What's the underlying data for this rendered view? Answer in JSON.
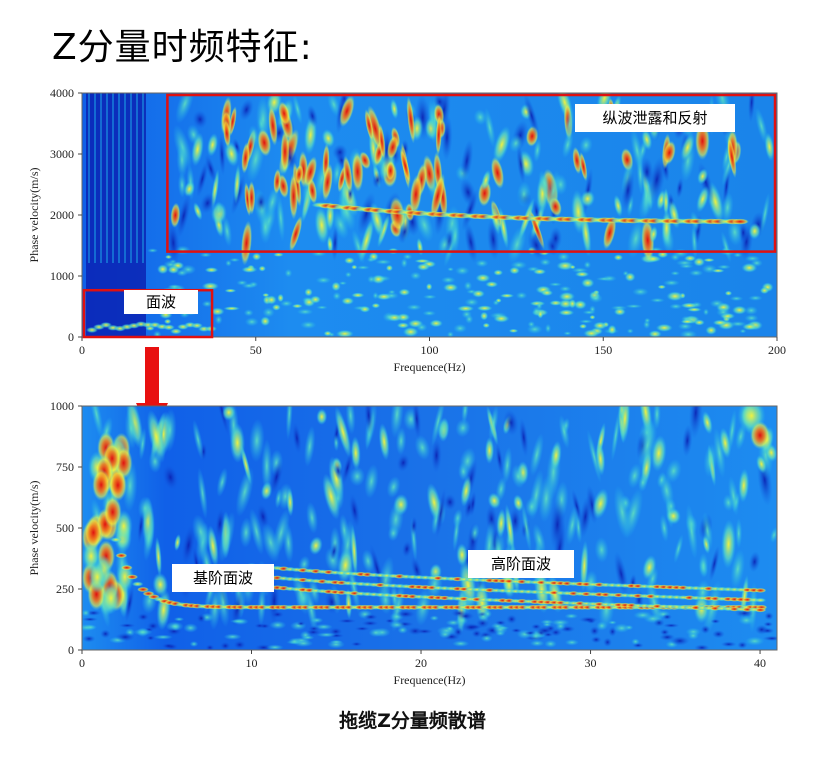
{
  "title": "Z分量时频特征:",
  "caption": "拖缆Z分量频散谱",
  "colors": {
    "highlight_box": "#e01010",
    "arrow": "#e81010",
    "colormap": [
      "#0a1fb0",
      "#1060e8",
      "#20b8f0",
      "#60e0c0",
      "#f0f040",
      "#f08020",
      "#e01010"
    ]
  },
  "chart_data": [
    {
      "type": "heatmap",
      "xlabel": "Frequence(Hz)",
      "ylabel": "Phase velocity(m/s)",
      "xlim": [
        0,
        200
      ],
      "ylim": [
        0,
        4000
      ],
      "xticks": [
        0,
        50,
        100,
        150,
        200
      ],
      "yticks": [
        0,
        1000,
        2000,
        3000,
        4000
      ],
      "annotations": [
        {
          "label": "纵波泄露和反射",
          "region": {
            "x": [
              24,
              200
            ],
            "y": [
              1400,
              4000
            ]
          }
        },
        {
          "label": "面波",
          "region": {
            "x": [
              0,
              38
            ],
            "y": [
              0,
              800
            ]
          }
        }
      ]
    },
    {
      "type": "heatmap",
      "xlabel": "Frequence(Hz)",
      "ylabel": "Phase velocity(m/s)",
      "xlim": [
        0,
        41
      ],
      "ylim": [
        0,
        1000
      ],
      "xticks": [
        0,
        10,
        20,
        30,
        40
      ],
      "yticks": [
        0,
        250,
        500,
        750,
        1000
      ],
      "annotations": [
        {
          "label": "基阶面波"
        },
        {
          "label": "高阶面波"
        }
      ]
    }
  ]
}
